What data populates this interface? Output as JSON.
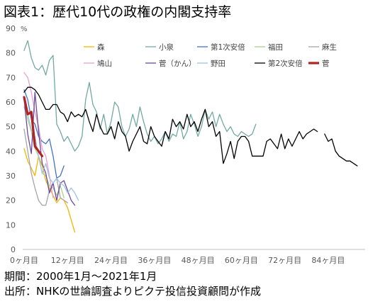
{
  "footer": {
    "period": "期間：2000年1月～2021年1月",
    "source": "出所：NHKの世論調査よりピクテ投信投資顧問が作成"
  },
  "chart_data": {
    "type": "line",
    "title": "図表1：歴代10代の政権の内閣支持率",
    "ylabel": "%",
    "ylim": [
      0,
      90
    ],
    "xlim": [
      0,
      94
    ],
    "yticks": [
      0,
      10,
      20,
      30,
      40,
      50,
      60,
      70,
      80,
      90
    ],
    "ytick_labels": [
      "0",
      "10",
      "20",
      "30",
      "40",
      "50",
      "60",
      "70",
      "80",
      "90"
    ],
    "xticks": [
      0,
      12,
      24,
      36,
      48,
      60,
      72,
      84
    ],
    "xtick_labels": [
      "0ヶ月目",
      "12ヶ月目",
      "24ヶ月目",
      "36ヶ月目",
      "48ヶ月目",
      "60ヶ月目",
      "72ヶ月目",
      "84ヶ月目"
    ],
    "grid": false,
    "legend": "top",
    "series": [
      {
        "name": "森",
        "color": "#f2b600",
        "values": [
          41,
          36,
          33,
          30,
          38,
          34,
          28,
          25,
          22,
          19,
          21,
          20,
          17,
          12,
          7
        ]
      },
      {
        "name": "小泉",
        "color": "#72aaa1",
        "values": [
          81,
          85,
          78,
          74,
          73,
          75,
          71,
          77,
          79,
          51,
          48,
          44,
          46,
          43,
          40,
          42,
          46,
          61,
          68,
          59,
          56,
          49,
          55,
          47,
          52,
          60,
          58,
          50,
          46,
          49,
          55,
          50,
          58,
          52,
          47,
          44,
          46,
          43,
          45,
          48,
          44,
          47,
          46,
          52,
          45,
          48,
          55,
          51,
          46,
          50,
          57,
          53,
          56,
          50,
          55,
          51,
          48,
          50,
          47,
          46,
          48,
          47,
          46,
          47,
          51
        ]
      },
      {
        "name": "第1次安倍",
        "color": "#4472c4",
        "values": [
          65,
          61,
          53,
          51,
          46,
          44,
          43,
          45,
          38,
          29,
          30,
          34
        ]
      },
      {
        "name": "福田",
        "color": "#a9d18e",
        "values": [
          58,
          53,
          48,
          41,
          38,
          31,
          30,
          26,
          25,
          22,
          26,
          21
        ]
      },
      {
        "name": "麻生",
        "color": "#a5a5a5",
        "values": [
          49,
          40,
          31,
          25,
          20,
          18,
          18,
          24,
          27,
          29,
          21,
          20,
          19
        ]
      },
      {
        "name": "鳩山",
        "color": "#e8a0d0",
        "values": [
          72,
          70,
          64,
          56,
          50,
          41,
          38,
          30,
          21
        ]
      },
      {
        "name": "菅（かん）",
        "color": "#6b4a9e",
        "values": [
          61,
          47,
          39,
          64,
          48,
          35,
          31,
          23,
          27,
          20,
          27,
          28,
          24,
          20,
          18
        ]
      },
      {
        "name": "野田",
        "color": "#9dc3e6",
        "values": [
          60,
          55,
          49,
          46,
          38,
          31,
          35,
          29,
          27,
          29,
          27,
          26,
          23,
          25,
          23,
          20
        ]
      },
      {
        "name": "第2次安倍",
        "color": "#000000",
        "values": [
          64,
          66,
          66,
          65,
          63,
          60,
          57,
          57,
          59,
          59,
          56,
          55,
          52,
          56,
          54,
          55,
          54,
          57,
          52,
          48,
          55,
          50,
          47,
          47,
          50,
          45,
          52,
          48,
          46,
          40,
          44,
          47,
          50,
          44,
          43,
          50,
          46,
          44,
          42,
          48,
          45,
          53,
          50,
          52,
          49,
          55,
          50,
          52,
          48,
          53,
          57,
          50,
          52,
          46,
          48,
          35,
          39,
          44,
          37,
          44,
          46,
          46,
          44,
          38,
          38,
          38,
          38,
          44,
          45,
          43,
          41,
          47,
          41,
          45,
          42,
          45,
          48,
          45,
          47,
          48,
          49,
          48,
          null,
          47,
          44,
          45,
          40,
          38,
          37,
          36,
          36,
          35,
          34
        ]
      },
      {
        "name": "菅",
        "color": "#b22222",
        "values": [
          62,
          55,
          56,
          42,
          40,
          38
        ]
      }
    ]
  }
}
